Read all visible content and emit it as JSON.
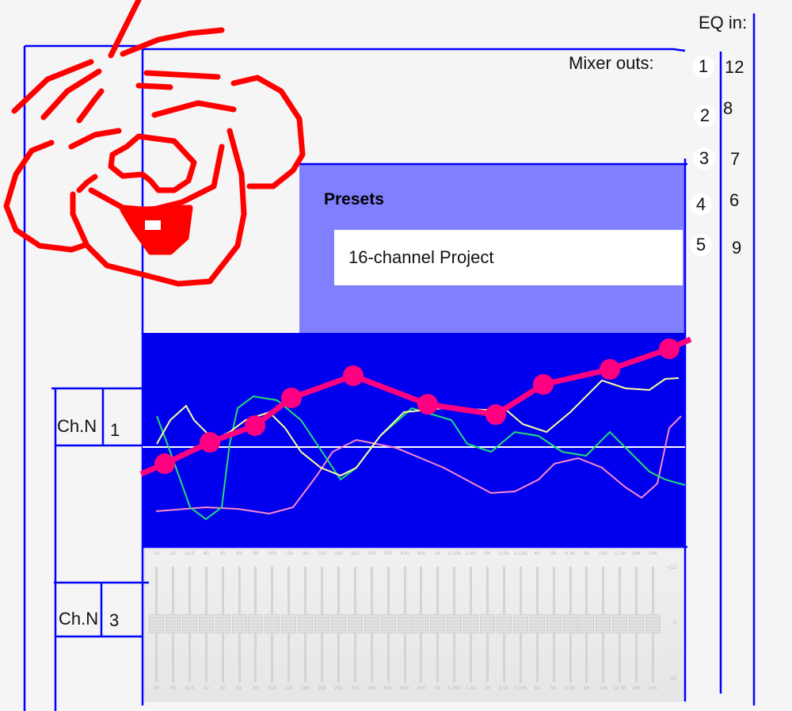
{
  "header": {
    "eq_in_label": "EQ in:",
    "mixer_outs_label": "Mixer outs:"
  },
  "mixer_outs": [
    "1",
    "2",
    "3",
    "4",
    "5"
  ],
  "eq_inputs": [
    "12",
    "8",
    "7",
    "6",
    "9"
  ],
  "presets": {
    "title": "Presets",
    "selected": "16-channel Project"
  },
  "channels": [
    {
      "label": "Ch.N",
      "number": "1"
    },
    {
      "label": "Ch.N",
      "number": "3"
    }
  ],
  "graphic_eq": {
    "bands": [
      "20",
      "25",
      "31.5",
      "40",
      "50",
      "63",
      "80",
      "100",
      "125",
      "160",
      "200",
      "250",
      "315",
      "400",
      "500",
      "630",
      "800",
      "1K",
      "1.25K",
      "1.6K",
      "2K",
      "2.5K",
      "3.15K",
      "4K",
      "5K",
      "6.3K",
      "8K",
      "10K",
      "12.5K",
      "16K",
      "20K"
    ],
    "gain_db": [
      0,
      0,
      0,
      0,
      0,
      0,
      0,
      0,
      0,
      0,
      0,
      0,
      0,
      0,
      0,
      0,
      0,
      0,
      0,
      0,
      0,
      0,
      0,
      0,
      0,
      0,
      0,
      0,
      0,
      0,
      0
    ],
    "scale": {
      "top": "+12",
      "mid": "0",
      "bottom": "-12"
    }
  },
  "colors": {
    "outline": "#0000ff",
    "presets_bg": "#8080ff",
    "graph_bg": "#0000ee",
    "eq_curve": "#ff0080",
    "doodle": "#ff0000"
  }
}
